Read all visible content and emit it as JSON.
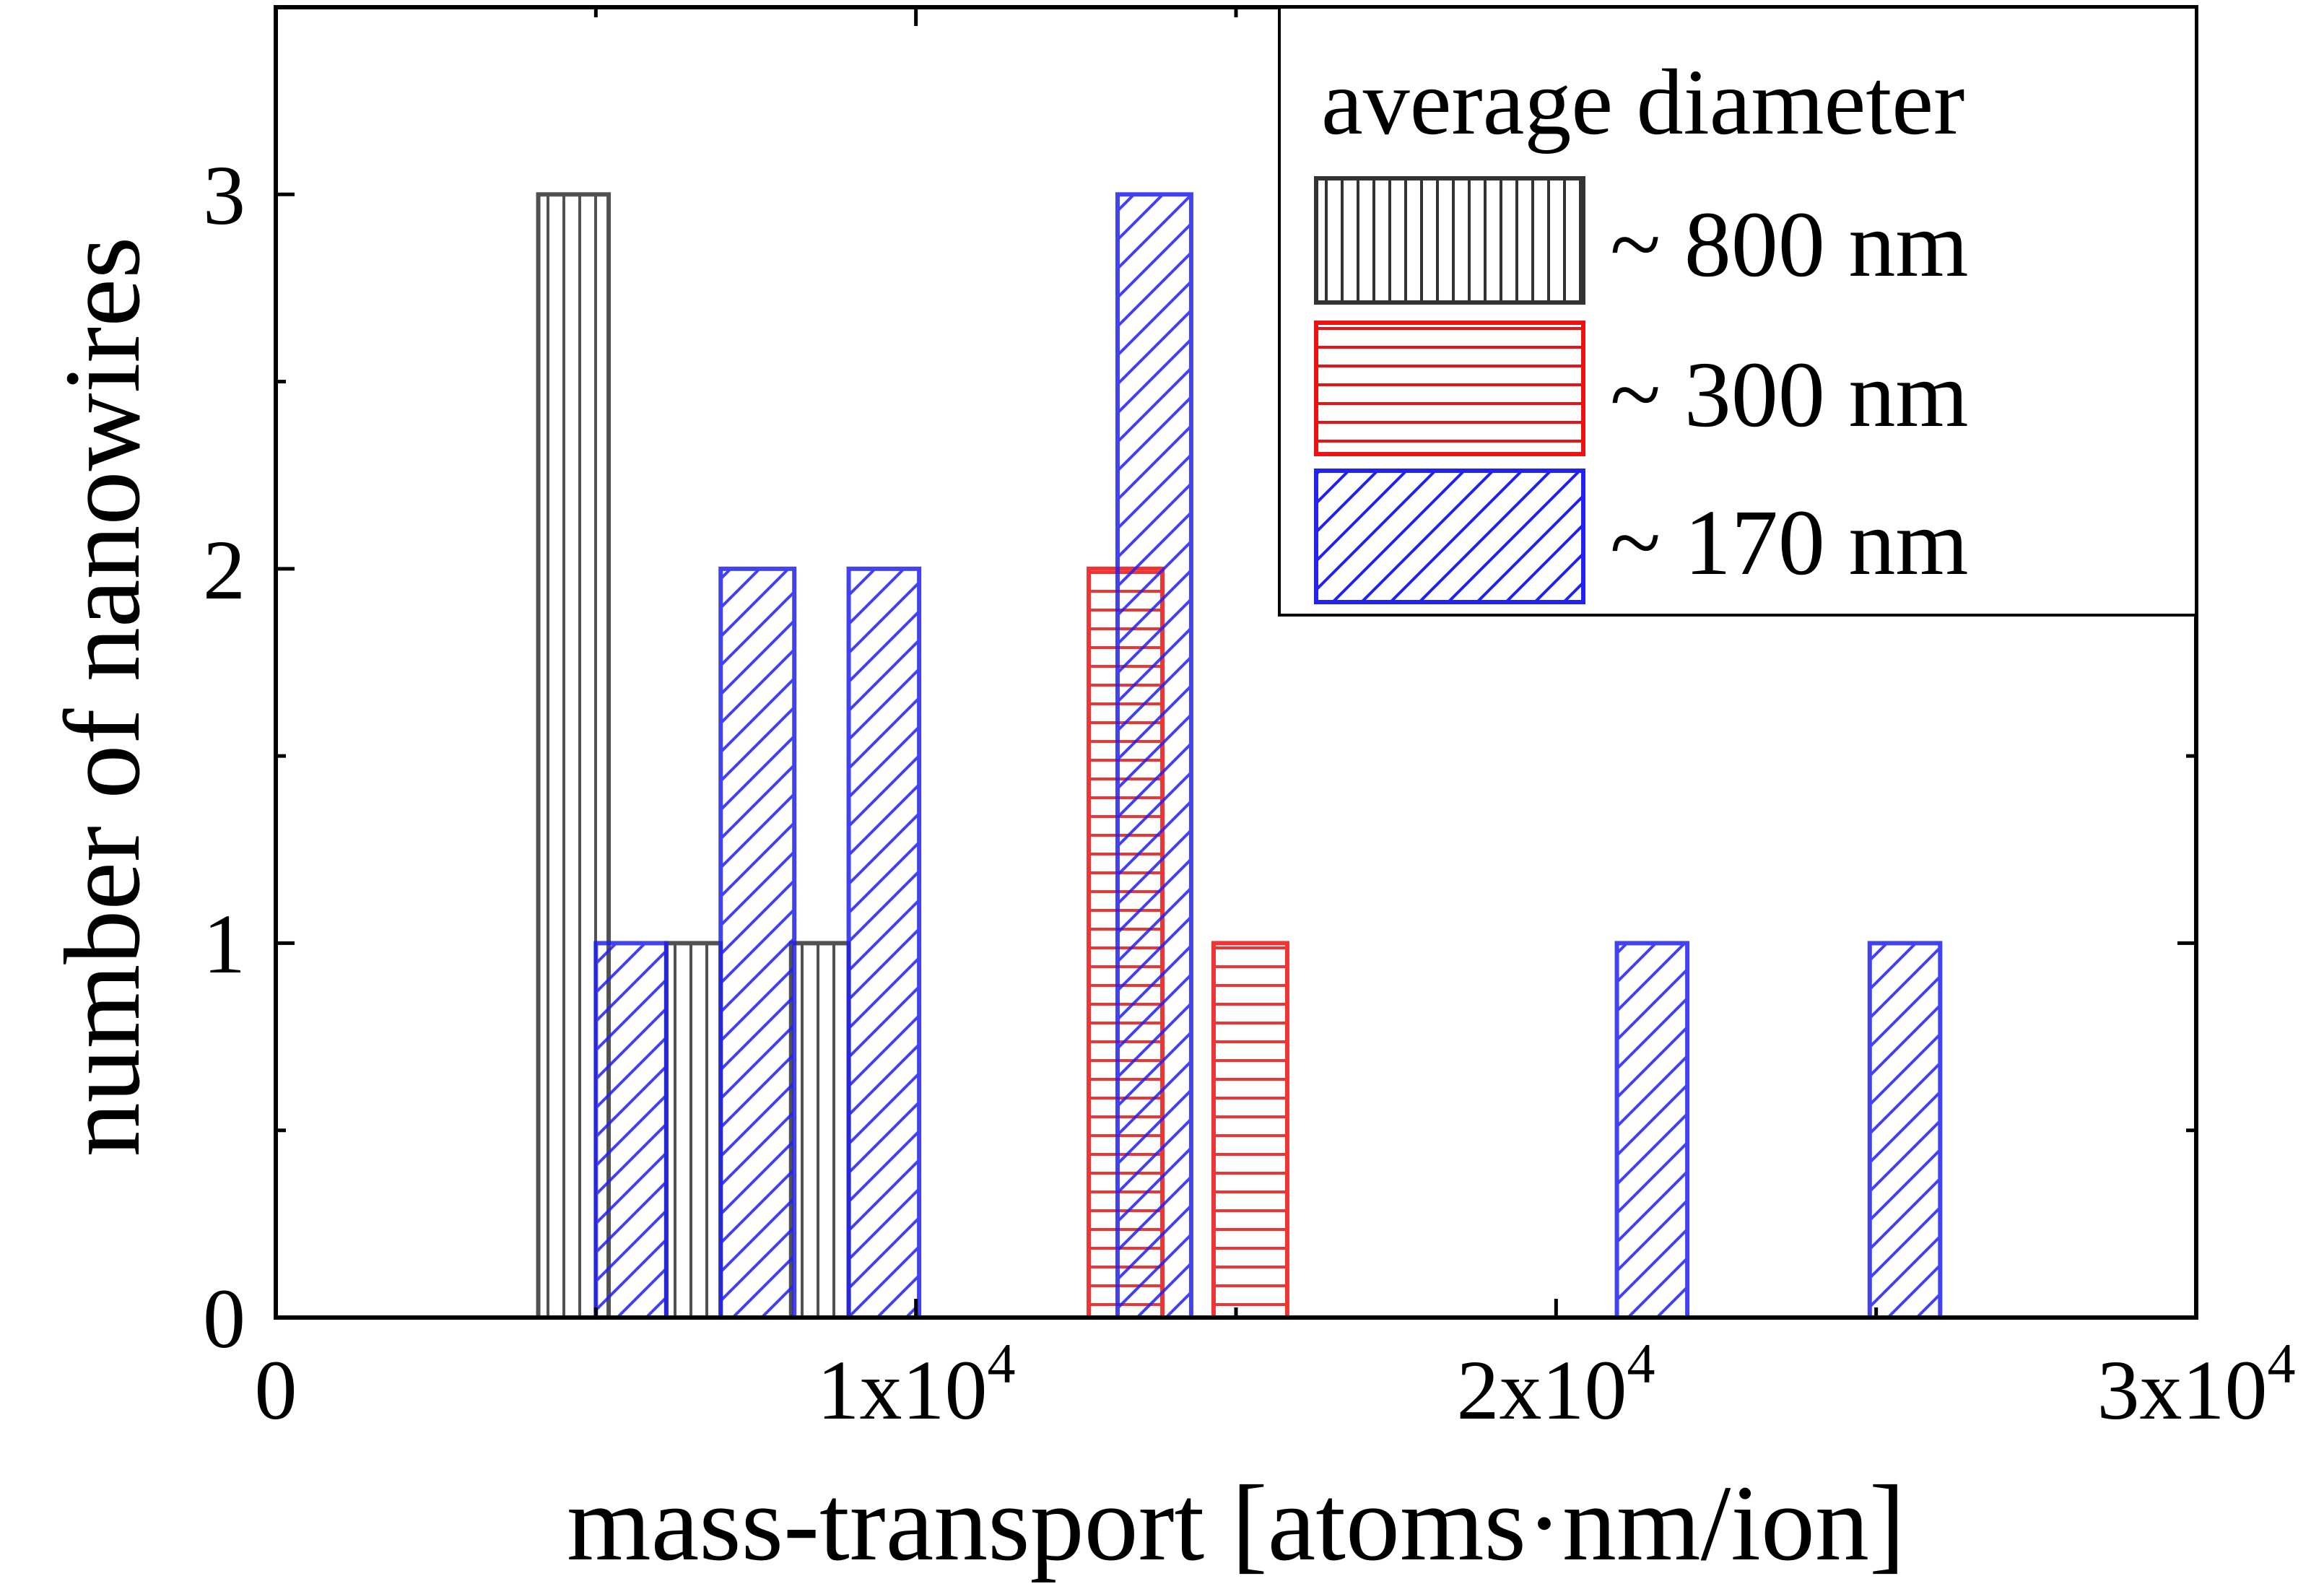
{
  "chart_data": {
    "type": "bar",
    "title": "",
    "xlabel": "mass-transport [atoms·nm/ion]",
    "ylabel": "number of nanowires",
    "xlim": [
      0,
      30000
    ],
    "ylim": [
      0,
      3.5
    ],
    "x_ticks": [
      {
        "value": 0,
        "label": "0",
        "exp": ""
      },
      {
        "value": 10000,
        "label": "1x10",
        "exp": "4"
      },
      {
        "value": 20000,
        "label": "2x10",
        "exp": "4"
      },
      {
        "value": 30000,
        "label": "3x10",
        "exp": "4"
      }
    ],
    "y_ticks": [
      {
        "value": 0,
        "label": "0"
      },
      {
        "value": 1,
        "label": "1"
      },
      {
        "value": 2,
        "label": "2"
      },
      {
        "value": 3,
        "label": "3"
      }
    ],
    "grid": false,
    "legend": {
      "title": "average diameter",
      "position": "top-right"
    },
    "series": [
      {
        "name": "~ 800 nm",
        "color": "#333333",
        "pattern": "vertical",
        "bars": [
          {
            "x0": 4100,
            "x1": 5200,
            "value": 3
          },
          {
            "x0": 6100,
            "x1": 6950,
            "value": 1
          },
          {
            "x0": 8050,
            "x1": 8950,
            "value": 1
          }
        ]
      },
      {
        "name": "~ 300 nm",
        "color": "#ee1111",
        "pattern": "horizontal",
        "bars": [
          {
            "x0": 12700,
            "x1": 13850,
            "value": 2
          },
          {
            "x0": 14650,
            "x1": 15800,
            "value": 1
          }
        ]
      },
      {
        "name": "~ 170 nm",
        "color": "#2222ee",
        "pattern": "diagonal",
        "bars": [
          {
            "x0": 5000,
            "x1": 6100,
            "value": 1
          },
          {
            "x0": 6950,
            "x1": 8100,
            "value": 2
          },
          {
            "x0": 8950,
            "x1": 10050,
            "value": 2
          },
          {
            "x0": 13150,
            "x1": 14300,
            "value": 3
          },
          {
            "x0": 20950,
            "x1": 22050,
            "value": 1
          },
          {
            "x0": 24900,
            "x1": 26000,
            "value": 1
          }
        ]
      }
    ]
  }
}
